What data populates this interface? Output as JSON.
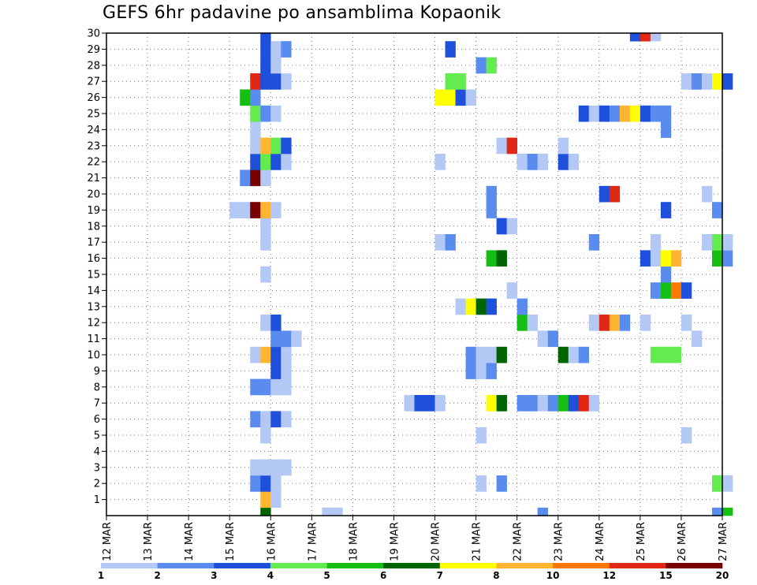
{
  "chart_data": {
    "type": "heatmap",
    "title": "GEFS 6hr padavine po ansamblima Kopaonik",
    "xlabel": "",
    "ylabel": "",
    "x_ticks": [
      "12 MAR",
      "13 MAR",
      "14 MAR",
      "15 MAR",
      "16 MAR",
      "17 MAR",
      "18 MAR",
      "19 MAR",
      "20 MAR",
      "21 MAR",
      "22 MAR",
      "23 MAR",
      "24 MAR",
      "25 MAR",
      "26 MAR",
      "27 MAR"
    ],
    "y_ticks": [
      "1",
      "2",
      "3",
      "4",
      "5",
      "6",
      "7",
      "8",
      "9",
      "10",
      "11",
      "12",
      "13",
      "14",
      "15",
      "16",
      "17",
      "18",
      "19",
      "20",
      "21",
      "22",
      "23",
      "24",
      "25",
      "26",
      "27",
      "28",
      "29",
      "30"
    ],
    "time_steps_per_day": 4,
    "x_range_days": [
      0,
      15
    ],
    "y_range_members": [
      0,
      30
    ],
    "grid": true,
    "legend": {
      "placement": "bottom",
      "colors": [
        "#b4c8f5",
        "#5a8cf0",
        "#1e50dc",
        "#64eb50",
        "#14be14",
        "#006400",
        "#ffff00",
        "#ffb432",
        "#ff7800",
        "#e12814",
        "#780000"
      ],
      "labels": [
        "1",
        "2",
        "3",
        "4",
        "5",
        "6",
        "7",
        "8",
        "10",
        "12",
        "15",
        "20"
      ]
    },
    "cells_format": "[time_step_index (6h steps from 12 MAR 00Z), ensemble_member (0-30), colour_class (1-11)]",
    "cells": [
      [
        15,
        0,
        6
      ],
      [
        21,
        0,
        1
      ],
      [
        22,
        0,
        1
      ],
      [
        42,
        0,
        2
      ],
      [
        59,
        0,
        2
      ],
      [
        60,
        0,
        5
      ],
      [
        15,
        1,
        8
      ],
      [
        16,
        1,
        1
      ],
      [
        14,
        2,
        2
      ],
      [
        15,
        2,
        3
      ],
      [
        16,
        2,
        1
      ],
      [
        36,
        2,
        1
      ],
      [
        38,
        2,
        2
      ],
      [
        59,
        2,
        4
      ],
      [
        60,
        2,
        1
      ],
      [
        14,
        3,
        1
      ],
      [
        15,
        3,
        1
      ],
      [
        16,
        3,
        1
      ],
      [
        17,
        3,
        1
      ],
      [
        15,
        5,
        1
      ],
      [
        36,
        5,
        1
      ],
      [
        56,
        5,
        1
      ],
      [
        14,
        6,
        2
      ],
      [
        15,
        6,
        1
      ],
      [
        16,
        6,
        3
      ],
      [
        17,
        6,
        1
      ],
      [
        29,
        7,
        1
      ],
      [
        30,
        7,
        3
      ],
      [
        31,
        7,
        3
      ],
      [
        32,
        7,
        1
      ],
      [
        37,
        7,
        7
      ],
      [
        38,
        7,
        6
      ],
      [
        40,
        7,
        2
      ],
      [
        41,
        7,
        2
      ],
      [
        42,
        7,
        1
      ],
      [
        43,
        7,
        2
      ],
      [
        44,
        7,
        5
      ],
      [
        45,
        7,
        3
      ],
      [
        46,
        7,
        10
      ],
      [
        47,
        7,
        1
      ],
      [
        14,
        8,
        2
      ],
      [
        15,
        8,
        2
      ],
      [
        16,
        8,
        1
      ],
      [
        17,
        8,
        1
      ],
      [
        16,
        9,
        3
      ],
      [
        17,
        9,
        1
      ],
      [
        35,
        9,
        2
      ],
      [
        36,
        9,
        1
      ],
      [
        37,
        9,
        2
      ],
      [
        14,
        10,
        1
      ],
      [
        15,
        10,
        8
      ],
      [
        16,
        10,
        3
      ],
      [
        17,
        10,
        1
      ],
      [
        35,
        10,
        2
      ],
      [
        36,
        10,
        1
      ],
      [
        37,
        10,
        1
      ],
      [
        38,
        10,
        6
      ],
      [
        44,
        10,
        6
      ],
      [
        45,
        10,
        1
      ],
      [
        46,
        10,
        2
      ],
      [
        53,
        10,
        4
      ],
      [
        54,
        10,
        4
      ],
      [
        55,
        10,
        4
      ],
      [
        16,
        11,
        2
      ],
      [
        17,
        11,
        2
      ],
      [
        18,
        11,
        1
      ],
      [
        42,
        11,
        1
      ],
      [
        43,
        11,
        2
      ],
      [
        57,
        11,
        1
      ],
      [
        15,
        12,
        1
      ],
      [
        16,
        12,
        3
      ],
      [
        40,
        12,
        5
      ],
      [
        41,
        12,
        1
      ],
      [
        47,
        12,
        1
      ],
      [
        48,
        12,
        10
      ],
      [
        49,
        12,
        8
      ],
      [
        50,
        12,
        2
      ],
      [
        52,
        12,
        1
      ],
      [
        56,
        12,
        1
      ],
      [
        34,
        13,
        1
      ],
      [
        35,
        13,
        7
      ],
      [
        36,
        13,
        6
      ],
      [
        37,
        13,
        3
      ],
      [
        40,
        13,
        2
      ],
      [
        39,
        14,
        1
      ],
      [
        53,
        14,
        2
      ],
      [
        54,
        14,
        5
      ],
      [
        55,
        14,
        9
      ],
      [
        56,
        14,
        3
      ],
      [
        15,
        15,
        1
      ],
      [
        54,
        15,
        2
      ],
      [
        37,
        16,
        5
      ],
      [
        38,
        16,
        6
      ],
      [
        52,
        16,
        3
      ],
      [
        53,
        16,
        1
      ],
      [
        54,
        16,
        7
      ],
      [
        55,
        16,
        8
      ],
      [
        59,
        16,
        5
      ],
      [
        60,
        16,
        2
      ],
      [
        15,
        17,
        1
      ],
      [
        32,
        17,
        1
      ],
      [
        33,
        17,
        2
      ],
      [
        47,
        17,
        2
      ],
      [
        53,
        17,
        1
      ],
      [
        58,
        17,
        1
      ],
      [
        59,
        17,
        4
      ],
      [
        60,
        17,
        1
      ],
      [
        15,
        18,
        1
      ],
      [
        38,
        18,
        3
      ],
      [
        39,
        18,
        1
      ],
      [
        12,
        19,
        1
      ],
      [
        13,
        19,
        1
      ],
      [
        14,
        19,
        11
      ],
      [
        15,
        19,
        8
      ],
      [
        16,
        19,
        1
      ],
      [
        37,
        19,
        2
      ],
      [
        54,
        19,
        3
      ],
      [
        59,
        19,
        2
      ],
      [
        37,
        20,
        2
      ],
      [
        48,
        20,
        3
      ],
      [
        49,
        20,
        10
      ],
      [
        58,
        20,
        1
      ],
      [
        13,
        21,
        2
      ],
      [
        14,
        21,
        11
      ],
      [
        15,
        21,
        1
      ],
      [
        14,
        22,
        3
      ],
      [
        15,
        22,
        4
      ],
      [
        16,
        22,
        3
      ],
      [
        17,
        22,
        1
      ],
      [
        32,
        22,
        1
      ],
      [
        40,
        22,
        1
      ],
      [
        41,
        22,
        2
      ],
      [
        42,
        22,
        1
      ],
      [
        44,
        22,
        3
      ],
      [
        45,
        22,
        1
      ],
      [
        14,
        23,
        1
      ],
      [
        15,
        23,
        8
      ],
      [
        16,
        23,
        4
      ],
      [
        17,
        23,
        3
      ],
      [
        38,
        23,
        1
      ],
      [
        39,
        23,
        10
      ],
      [
        44,
        23,
        1
      ],
      [
        14,
        24,
        1
      ],
      [
        54,
        24,
        2
      ],
      [
        14,
        25,
        4
      ],
      [
        15,
        25,
        2
      ],
      [
        16,
        25,
        1
      ],
      [
        46,
        25,
        3
      ],
      [
        47,
        25,
        1
      ],
      [
        48,
        25,
        3
      ],
      [
        49,
        25,
        2
      ],
      [
        50,
        25,
        8
      ],
      [
        51,
        25,
        7
      ],
      [
        52,
        25,
        3
      ],
      [
        53,
        25,
        2
      ],
      [
        54,
        25,
        2
      ],
      [
        13,
        26,
        5
      ],
      [
        14,
        26,
        2
      ],
      [
        32,
        26,
        7
      ],
      [
        33,
        26,
        7
      ],
      [
        34,
        26,
        3
      ],
      [
        35,
        26,
        1
      ],
      [
        14,
        27,
        10
      ],
      [
        15,
        27,
        3
      ],
      [
        16,
        27,
        3
      ],
      [
        17,
        27,
        1
      ],
      [
        33,
        27,
        4
      ],
      [
        34,
        27,
        4
      ],
      [
        56,
        27,
        1
      ],
      [
        57,
        27,
        2
      ],
      [
        58,
        27,
        1
      ],
      [
        59,
        27,
        7
      ],
      [
        60,
        27,
        3
      ],
      [
        15,
        28,
        3
      ],
      [
        16,
        28,
        1
      ],
      [
        36,
        28,
        2
      ],
      [
        37,
        28,
        4
      ],
      [
        15,
        29,
        3
      ],
      [
        16,
        29,
        1
      ],
      [
        17,
        29,
        2
      ],
      [
        33,
        29,
        3
      ],
      [
        15,
        30,
        3
      ],
      [
        51,
        30,
        3
      ],
      [
        52,
        30,
        10
      ],
      [
        53,
        30,
        1
      ]
    ]
  }
}
